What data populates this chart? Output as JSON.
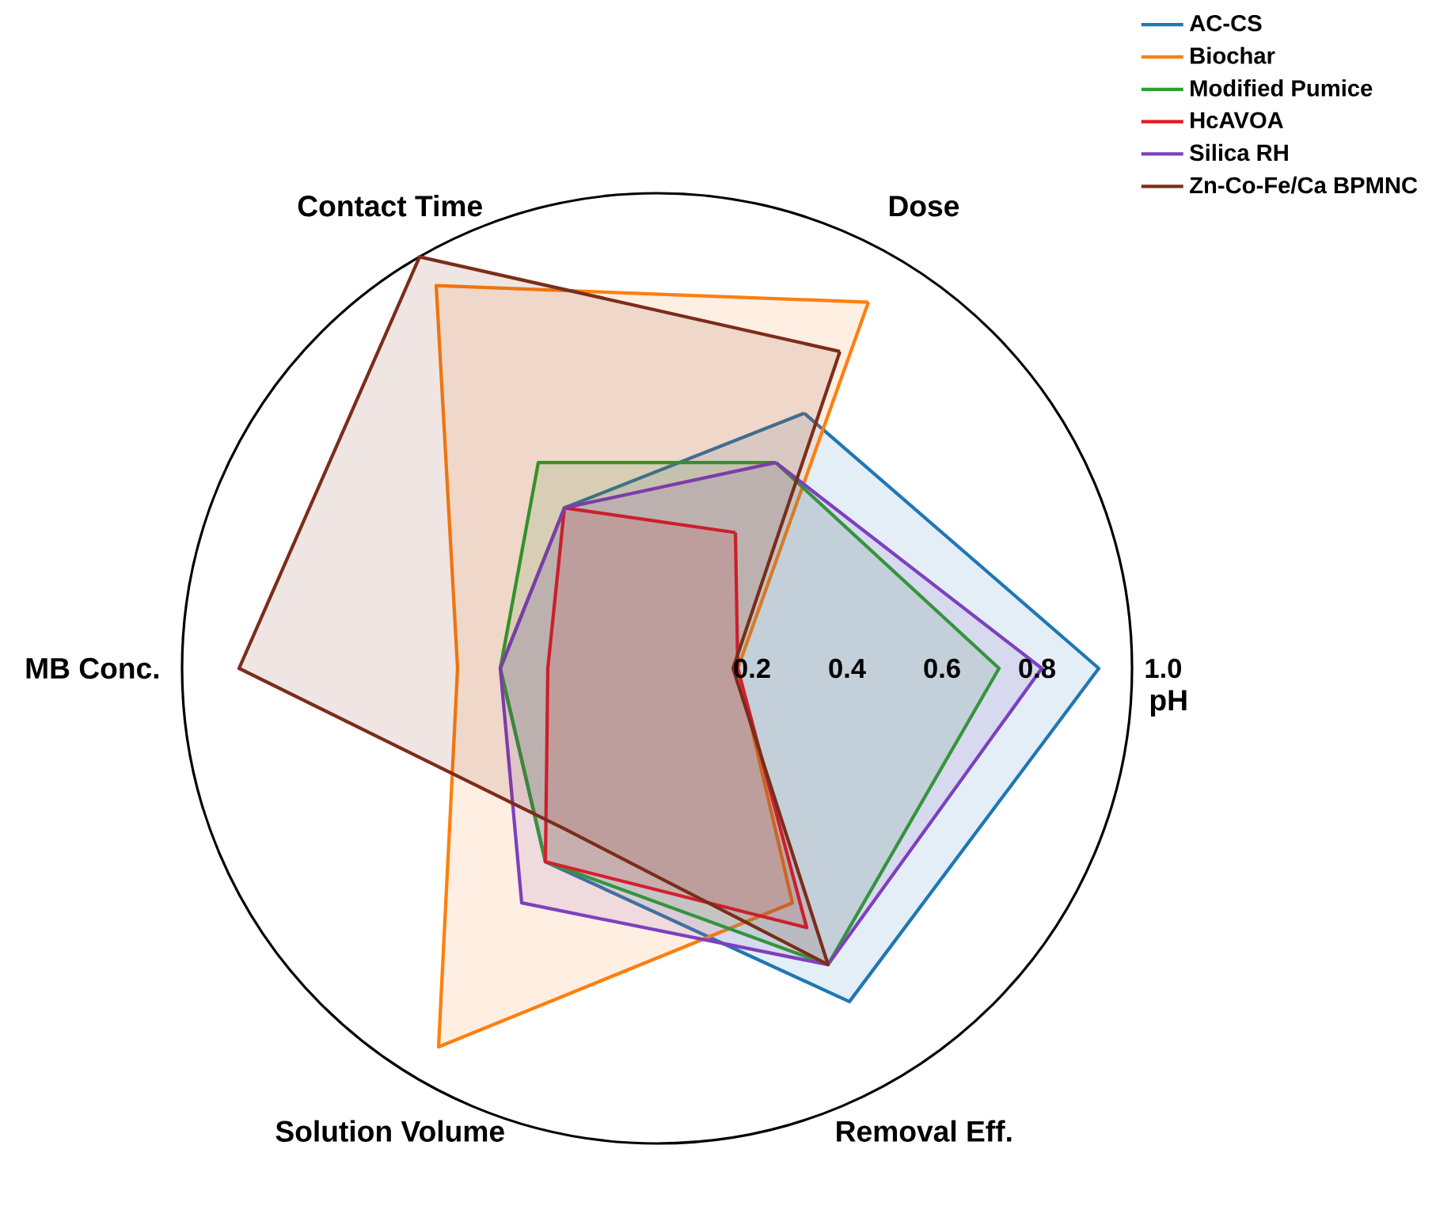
{
  "chart_data": {
    "type": "radar",
    "categories": [
      "Dose",
      "pH",
      "Removal Eff.",
      "Solution Volume",
      "MB Conc.",
      "Contact Time"
    ],
    "series": [
      {
        "name": "AC-CS",
        "color": "#1f77b4",
        "values": [
          0.62,
          0.93,
          0.81,
          0.47,
          0.33,
          0.39
        ]
      },
      {
        "name": "Biochar",
        "color": "#ff7f0e",
        "values": [
          0.89,
          0.17,
          0.57,
          0.92,
          0.42,
          0.93
        ]
      },
      {
        "name": "Modified Pumice",
        "color": "#2ca02c",
        "values": [
          0.5,
          0.72,
          0.72,
          0.47,
          0.33,
          0.5
        ]
      },
      {
        "name": "HcAVOA",
        "color": "#e31a1c",
        "values": [
          0.33,
          0.17,
          0.63,
          0.47,
          0.23,
          0.39
        ]
      },
      {
        "name": "Silica RH",
        "color": "#7e3fbf",
        "values": [
          0.5,
          0.81,
          0.72,
          0.57,
          0.33,
          0.39
        ]
      },
      {
        "name": "Zn-Co-Fe/Ca BPMNC",
        "color": "#7b2d1a",
        "values": [
          0.77,
          0.16,
          0.72,
          0.39,
          0.88,
          1.0
        ]
      }
    ],
    "ylim": [
      0,
      1
    ],
    "yticks": [
      0.2,
      0.4,
      0.6,
      0.8,
      {
        "value": 1,
        "label": "1.0"
      }
    ],
    "legend": "top right"
  }
}
